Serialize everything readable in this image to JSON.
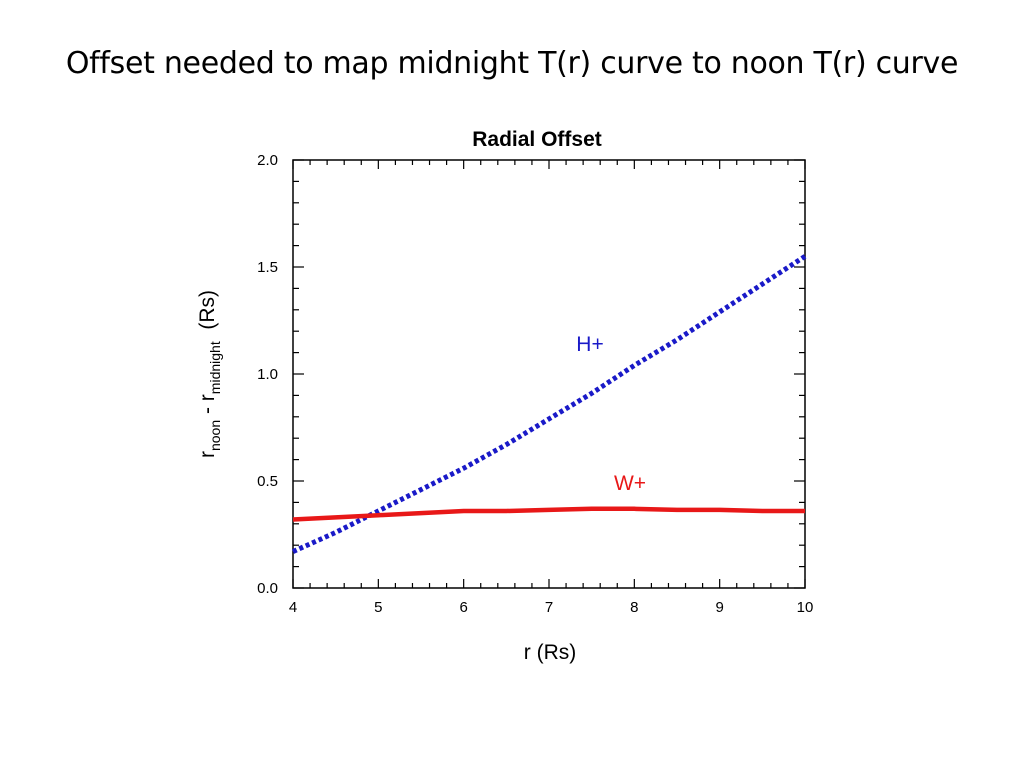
{
  "slide": {
    "title": "Offset needed to map midnight T(r) curve to noon T(r) curve"
  },
  "chart_data": {
    "type": "line",
    "title": "Radial  Offset",
    "xlabel": "r  (Rs)",
    "ylabel": {
      "r1": "r",
      "sub1": "noon",
      "dash": " - ",
      "r2": "r",
      "sub2": "midnight",
      "unit": "  (Rs)"
    },
    "xlim": [
      4,
      10
    ],
    "ylim": [
      0.0,
      2.0
    ],
    "x_ticks": [
      "4",
      "5",
      "6",
      "7",
      "8",
      "9",
      "10"
    ],
    "y_ticks": [
      "0.0",
      "0.5",
      "1.0",
      "1.5",
      "2.0"
    ],
    "grid": false,
    "series": [
      {
        "name": "H+",
        "color": "#1a1ac8",
        "style": "dotted",
        "x": [
          4.0,
          4.5,
          5.0,
          5.5,
          6.0,
          6.5,
          7.0,
          7.5,
          8.0,
          8.5,
          9.0,
          9.5,
          10.0
        ],
        "y": [
          0.17,
          0.26,
          0.36,
          0.46,
          0.56,
          0.67,
          0.79,
          0.91,
          1.04,
          1.16,
          1.29,
          1.42,
          1.55
        ]
      },
      {
        "name": "W+",
        "color": "#e81818",
        "style": "solid",
        "x": [
          4.0,
          4.5,
          5.0,
          5.5,
          6.0,
          6.5,
          7.0,
          7.5,
          8.0,
          8.5,
          9.0,
          9.5,
          10.0
        ],
        "y": [
          0.32,
          0.33,
          0.34,
          0.35,
          0.36,
          0.36,
          0.365,
          0.37,
          0.37,
          0.365,
          0.365,
          0.36,
          0.36
        ]
      }
    ]
  }
}
